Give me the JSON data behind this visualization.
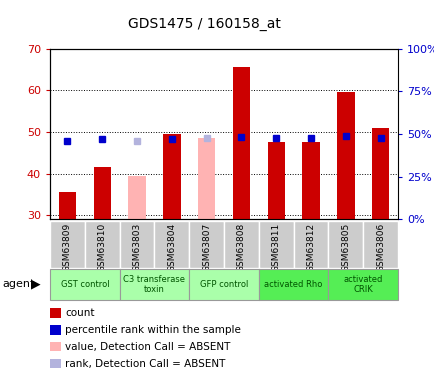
{
  "title": "GDS1475 / 160158_at",
  "samples": [
    "GSM63809",
    "GSM63810",
    "GSM63803",
    "GSM63804",
    "GSM63807",
    "GSM63808",
    "GSM63811",
    "GSM63812",
    "GSM63805",
    "GSM63806"
  ],
  "count_values": [
    35.5,
    41.5,
    null,
    49.5,
    null,
    65.5,
    47.5,
    47.5,
    59.5,
    51.0
  ],
  "rank_values": [
    46.0,
    47.0,
    null,
    47.0,
    null,
    48.5,
    47.5,
    47.5,
    49.0,
    47.5
  ],
  "absent_count_values": [
    null,
    null,
    39.5,
    null,
    48.5,
    null,
    null,
    null,
    null,
    null
  ],
  "absent_rank_values": [
    null,
    null,
    46.0,
    null,
    47.5,
    null,
    null,
    null,
    null,
    null
  ],
  "ylim": [
    29,
    70
  ],
  "y2lim": [
    0,
    100
  ],
  "yticks": [
    30,
    40,
    50,
    60,
    70
  ],
  "y2ticks": [
    0,
    25,
    50,
    75,
    100
  ],
  "agent_groups": [
    {
      "label": "GST control",
      "start": 0,
      "end": 2,
      "color": "#aaffaa"
    },
    {
      "label": "C3 transferase\ntoxin",
      "start": 2,
      "end": 4,
      "color": "#aaffaa"
    },
    {
      "label": "GFP control",
      "start": 4,
      "end": 6,
      "color": "#aaffaa"
    },
    {
      "label": "activated Rho",
      "start": 6,
      "end": 8,
      "color": "#55ee55"
    },
    {
      "label": "activated\nCRIK",
      "start": 8,
      "end": 10,
      "color": "#55ee55"
    }
  ],
  "bar_width": 0.5,
  "count_color": "#cc0000",
  "rank_color": "#0000cc",
  "absent_count_color": "#ffb3b3",
  "absent_rank_color": "#b3b3dd",
  "ylabel_color": "#cc0000",
  "y2label_color": "#0000cc",
  "tick_bg_color": "#cccccc",
  "legend_items": [
    {
      "color": "#cc0000",
      "label": "count"
    },
    {
      "color": "#0000cc",
      "label": "percentile rank within the sample"
    },
    {
      "color": "#ffb3b3",
      "label": "value, Detection Call = ABSENT"
    },
    {
      "color": "#b3b3dd",
      "label": "rank, Detection Call = ABSENT"
    }
  ]
}
